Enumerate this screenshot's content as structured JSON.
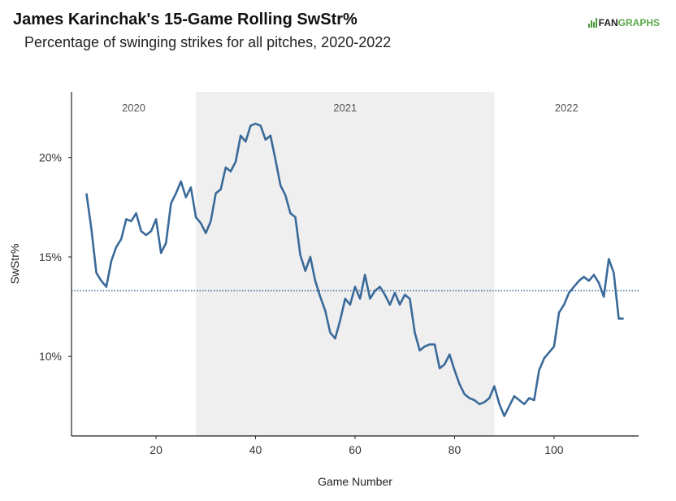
{
  "title": "James Karinchak's 15-Game Rolling SwStr%",
  "subtitle": "Percentage of swinging strikes for all pitches, 2020-2022",
  "logo": {
    "text_fan": "FAN",
    "text_graphs": "GRAPHS",
    "colors": {
      "fan": "#222222",
      "graphs": "#5aa847"
    }
  },
  "chart_data": {
    "type": "line",
    "xlabel": "Game Number",
    "ylabel": "SwStr%",
    "xlim": [
      3,
      117
    ],
    "ylim": [
      6.0,
      23.3
    ],
    "x_ticks": [
      {
        "value": 20,
        "label": "20"
      },
      {
        "value": 40,
        "label": "40"
      },
      {
        "value": 60,
        "label": "60"
      },
      {
        "value": 80,
        "label": "80"
      },
      {
        "value": 100,
        "label": "100"
      }
    ],
    "y_ticks": [
      {
        "value": 10,
        "label": "10%"
      },
      {
        "value": 15,
        "label": "15%"
      },
      {
        "value": 20,
        "label": "20%"
      }
    ],
    "grid": false,
    "line_color": "#3a6a99",
    "reference_line": {
      "value": 13.3,
      "style": "dotted",
      "color": "#3a6a99"
    },
    "season_bands": [
      {
        "label": "2020",
        "x_start": 3,
        "x_end": 28,
        "shaded": false
      },
      {
        "label": "2021",
        "x_start": 28,
        "x_end": 88,
        "shaded": true
      },
      {
        "label": "2022",
        "x_start": 88,
        "x_end": 117,
        "shaded": false
      }
    ],
    "band_color": "#efefef",
    "series": [
      {
        "x": [
          6,
          7,
          8,
          9,
          10,
          11,
          12,
          13,
          14,
          15,
          16,
          17,
          18,
          19,
          20,
          21,
          22,
          23,
          24,
          25,
          26,
          27,
          28,
          29,
          30,
          31,
          32,
          33,
          34,
          35,
          36,
          37,
          38,
          39,
          40,
          41,
          42,
          43,
          44,
          45,
          46,
          47,
          48,
          49,
          50,
          51,
          52,
          53,
          54,
          55,
          56,
          57,
          58,
          59,
          60,
          61,
          62,
          63,
          64,
          65,
          66,
          67,
          68,
          69,
          70,
          71,
          72,
          73,
          74,
          75,
          76,
          77,
          78,
          79,
          80,
          81,
          82,
          83,
          84,
          85,
          86,
          87,
          88,
          89,
          90,
          91,
          92,
          93,
          94,
          95,
          96,
          97,
          98,
          99,
          100,
          101,
          102,
          103,
          104,
          105,
          106,
          107,
          108,
          109,
          110,
          111,
          112,
          113,
          114
        ],
        "y": [
          18.2,
          16.4,
          14.2,
          13.8,
          13.5,
          14.8,
          15.5,
          15.9,
          16.9,
          16.8,
          17.2,
          16.3,
          16.1,
          16.3,
          16.9,
          15.2,
          15.7,
          17.7,
          18.2,
          18.8,
          18.0,
          18.5,
          17.0,
          16.7,
          16.2,
          16.8,
          18.2,
          18.4,
          19.5,
          19.3,
          19.8,
          21.1,
          20.8,
          21.6,
          21.7,
          21.6,
          20.9,
          21.1,
          19.9,
          18.6,
          18.1,
          17.2,
          17.0,
          15.1,
          14.3,
          15.0,
          13.8,
          13.0,
          12.3,
          11.2,
          10.9,
          11.8,
          12.9,
          12.6,
          13.5,
          12.9,
          14.1,
          12.9,
          13.3,
          13.5,
          13.1,
          12.6,
          13.2,
          12.6,
          13.1,
          12.9,
          11.2,
          10.3,
          10.5,
          10.6,
          10.6,
          9.4,
          9.6,
          10.1,
          9.3,
          8.6,
          8.1,
          7.9,
          7.8,
          7.6,
          7.7,
          7.9,
          8.5,
          7.6,
          7.0,
          7.5,
          8.0,
          7.8,
          7.6,
          7.9,
          7.8,
          9.3,
          9.9,
          10.2,
          10.5,
          12.2,
          12.6,
          13.2,
          13.5,
          13.8,
          14.0,
          13.8,
          14.1,
          13.7,
          13.0,
          14.9,
          14.2,
          11.9,
          11.9
        ]
      }
    ]
  }
}
